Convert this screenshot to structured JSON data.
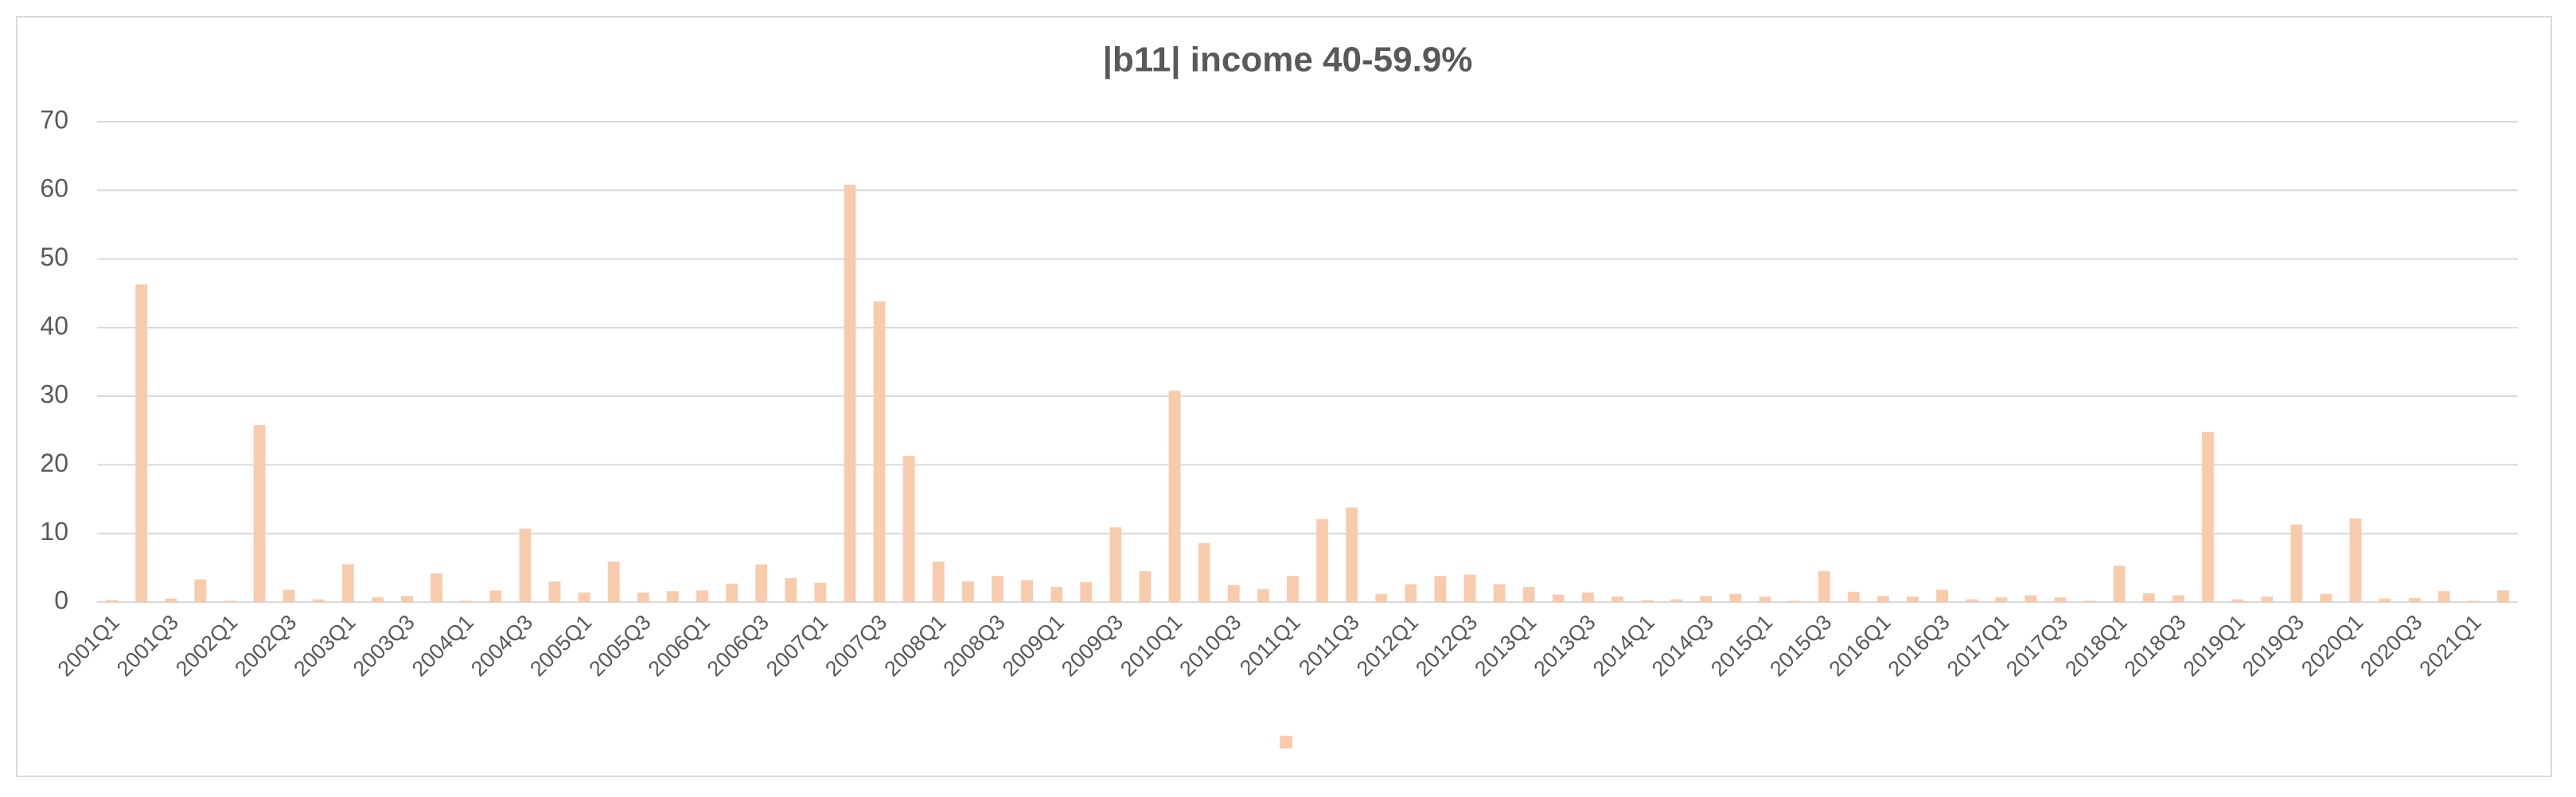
{
  "chart_data": {
    "type": "bar",
    "title": "|b11| income 40-59.9%",
    "categories": [
      "2001Q1",
      null,
      "2001Q3",
      null,
      "2002Q1",
      null,
      "2002Q3",
      null,
      "2003Q1",
      null,
      "2003Q3",
      null,
      "2004Q1",
      null,
      "2004Q3",
      null,
      "2005Q1",
      null,
      "2005Q3",
      null,
      "2006Q1",
      null,
      "2006Q3",
      null,
      "2007Q1",
      null,
      "2007Q3",
      null,
      "2008Q1",
      null,
      "2008Q3",
      null,
      "2009Q1",
      null,
      "2009Q3",
      null,
      "2010Q1",
      null,
      "2010Q3",
      null,
      "2011Q1",
      null,
      "2011Q3",
      null,
      "2012Q1",
      null,
      "2012Q3",
      null,
      "2013Q1",
      null,
      "2013Q3",
      null,
      "2014Q1",
      null,
      "2014Q3",
      null,
      "2015Q1",
      null,
      "2015Q3",
      null,
      "2016Q1",
      null,
      "2016Q3",
      null,
      "2017Q1",
      null,
      "2017Q3",
      null,
      "2018Q1",
      null,
      "2018Q3",
      null,
      "2019Q1",
      null,
      "2019Q3",
      null,
      "2020Q1",
      null,
      "2020Q3",
      null,
      "2021Q1",
      null
    ],
    "values": [
      0.3,
      46.3,
      0.5,
      3.3,
      0.2,
      25.8,
      1.8,
      0.4,
      5.5,
      0.7,
      0.9,
      4.2,
      0.2,
      1.7,
      10.7,
      3.0,
      1.4,
      5.9,
      1.4,
      1.6,
      1.7,
      2.7,
      5.5,
      3.5,
      2.8,
      60.8,
      43.8,
      21.3,
      5.9,
      3.0,
      3.8,
      3.2,
      2.2,
      2.9,
      10.9,
      4.5,
      30.8,
      8.6,
      2.5,
      1.9,
      3.8,
      12.1,
      13.8,
      1.2,
      2.6,
      3.8,
      4.0,
      2.6,
      2.2,
      1.1,
      1.4,
      0.8,
      0.3,
      0.4,
      0.9,
      1.2,
      0.8,
      0.2,
      4.5,
      1.5,
      0.9,
      0.8,
      1.8,
      0.4,
      0.7,
      1.0,
      0.7,
      0.2,
      5.3,
      1.3,
      1.0,
      24.8,
      0.4,
      0.8,
      11.3,
      1.2,
      12.2,
      0.5,
      0.6,
      1.6,
      0.2,
      1.7
    ],
    "color": "#f8cbad",
    "ylim": [
      0,
      70
    ],
    "yticks": [
      0,
      10,
      20,
      30,
      40,
      50,
      60,
      70
    ],
    "grid": true
  }
}
